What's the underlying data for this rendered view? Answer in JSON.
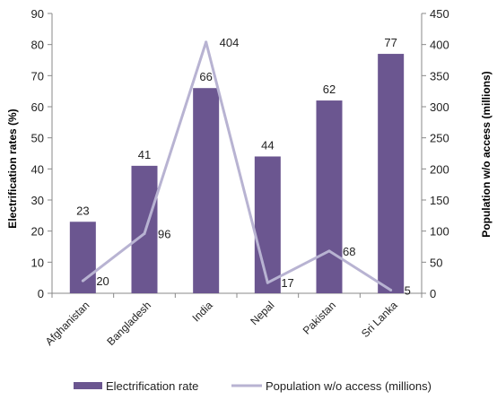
{
  "chart_data": {
    "type": "bar",
    "categories": [
      "Afghanistan",
      "Bangladesh",
      "India",
      "Nepal",
      "Pakistan",
      "Sri Lanka"
    ],
    "series": [
      {
        "name": "Electrification rate",
        "type": "bar",
        "axis": "left",
        "color": "#6b5690",
        "values": [
          23,
          41,
          66,
          44,
          62,
          77
        ]
      },
      {
        "name": "Population w/o access (millions)",
        "type": "line",
        "axis": "right",
        "color": "#b8b3d2",
        "values": [
          20,
          96,
          404,
          17,
          68,
          5
        ]
      }
    ],
    "ylabel": "Electrification rates (%)",
    "y2label": "Population w/o access (millions)",
    "ylim": [
      0,
      90
    ],
    "y2lim": [
      0,
      450
    ],
    "yticks": [
      "0",
      "10",
      "20",
      "30",
      "40",
      "50",
      "60",
      "70",
      "80",
      "90"
    ],
    "y2ticks": [
      "0",
      "50",
      "100",
      "150",
      "200",
      "250",
      "300",
      "350",
      "400",
      "450"
    ],
    "grid": false,
    "legend_position": "bottom"
  }
}
